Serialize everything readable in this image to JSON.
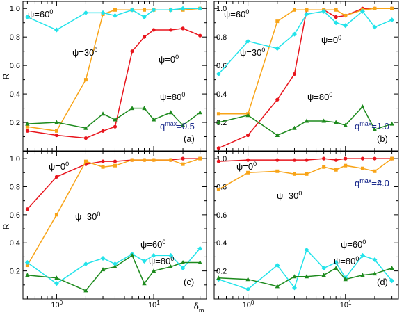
{
  "figure": {
    "xlabel": "δ",
    "xlabel_sub": "m",
    "ylabel": "R",
    "x_ticks": [
      {
        "value": 1,
        "base": "10",
        "exp": "0"
      },
      {
        "value": 10,
        "base": "10",
        "exp": "1"
      }
    ]
  },
  "chart_data": [
    {
      "type": "line",
      "panel": "(a)",
      "annotation": {
        "base": "q",
        "sup": "max",
        "rest": "=0.5"
      },
      "xscale": "log",
      "xlim": [
        0.45,
        35
      ],
      "ylim": [
        0,
        1.05
      ],
      "y_ticks": [
        "0.2",
        "0.4",
        "0.6",
        "0.8",
        "1.0"
      ],
      "series": [
        {
          "name": "ψ=0⁰",
          "color": "#e8141c",
          "marker": "circle",
          "label_text": "ψ=0",
          "label_sup": "0",
          "x": [
            0.5,
            1,
            2,
            3,
            4,
            6,
            8,
            10,
            15,
            20,
            30
          ],
          "y": [
            0.14,
            0.11,
            0.09,
            0.14,
            0.17,
            0.7,
            0.8,
            0.85,
            0.85,
            0.86,
            0.81
          ]
        },
        {
          "name": "ψ=30⁰",
          "color": "#f8a418",
          "marker": "square",
          "label_text": "ψ=30",
          "label_sup": "0",
          "x": [
            0.5,
            1,
            2,
            3,
            4,
            6,
            8,
            10,
            15,
            20,
            30
          ],
          "y": [
            0.17,
            0.14,
            0.5,
            0.96,
            0.99,
            0.99,
            0.99,
            0.99,
            0.99,
            0.99,
            1.0
          ]
        },
        {
          "name": "ψ=60⁰",
          "color": "#22e3ea",
          "marker": "diamond",
          "label_text": "ψ=60",
          "label_sup": "0",
          "x": [
            0.5,
            1,
            2,
            3,
            4,
            6,
            8,
            10,
            15,
            20,
            30
          ],
          "y": [
            0.94,
            0.85,
            0.97,
            0.97,
            0.95,
            0.99,
            0.94,
            0.99,
            0.99,
            1.0,
            1.0
          ]
        },
        {
          "name": "ψ=80⁰",
          "color": "#1d8a1d",
          "marker": "triangle",
          "label_text": "ψ=80",
          "label_sup": "0",
          "x": [
            0.5,
            1,
            2,
            3,
            4,
            6,
            8,
            10,
            15,
            20,
            30
          ],
          "y": [
            0.19,
            0.2,
            0.16,
            0.26,
            0.22,
            0.3,
            0.3,
            0.22,
            0.27,
            0.18,
            0.27
          ]
        }
      ]
    },
    {
      "type": "line",
      "panel": "(b)",
      "annotation": {
        "base": "q",
        "sup": "max",
        "rest": "=1.0"
      },
      "xscale": "log",
      "xlim": [
        0.45,
        35
      ],
      "ylim": [
        0,
        1.05
      ],
      "y_ticks": [
        "0.2",
        "0.4",
        "0.6",
        "0.8",
        "1.0"
      ],
      "series": [
        {
          "name": "ψ=0⁰",
          "color": "#e8141c",
          "marker": "circle",
          "label_text": "ψ=0",
          "label_sup": "0",
          "x": [
            0.5,
            1,
            2,
            3,
            4,
            6,
            8,
            10,
            15,
            20,
            30
          ],
          "y": [
            0.02,
            0.11,
            0.36,
            0.54,
            0.99,
            0.99,
            0.94,
            0.95,
            1.0,
            1.0,
            1.0
          ]
        },
        {
          "name": "ψ=30⁰",
          "color": "#f8a418",
          "marker": "square",
          "label_text": "ψ=30",
          "label_sup": "0",
          "x": [
            0.5,
            1,
            2,
            3,
            4,
            6,
            8,
            10,
            15,
            20,
            30
          ],
          "y": [
            0.26,
            0.26,
            0.91,
            0.99,
            0.99,
            0.99,
            0.99,
            0.95,
            0.99,
            1.0,
            1.0
          ]
        },
        {
          "name": "ψ=60⁰",
          "color": "#22e3ea",
          "marker": "diamond",
          "label_text": "ψ=60",
          "label_sup": "0",
          "x": [
            0.5,
            1,
            2,
            3,
            4,
            6,
            8,
            10,
            15,
            20,
            30
          ],
          "y": [
            0.54,
            0.77,
            0.72,
            0.82,
            0.96,
            0.98,
            0.9,
            0.88,
            0.98,
            0.87,
            0.92
          ]
        },
        {
          "name": "ψ=80⁰",
          "color": "#1d8a1d",
          "marker": "triangle",
          "label_text": "ψ=80",
          "label_sup": "0",
          "x": [
            0.5,
            1,
            2,
            3,
            4,
            6,
            8,
            10,
            15,
            20,
            30
          ],
          "y": [
            0.2,
            0.25,
            0.11,
            0.16,
            0.21,
            0.21,
            0.2,
            0.18,
            0.31,
            0.15,
            0.19
          ]
        }
      ]
    },
    {
      "type": "line",
      "panel": "(c)",
      "annotation": {
        "base": "q",
        "sup": "max",
        "rest": "=2.0"
      },
      "xscale": "log",
      "xlim": [
        0.45,
        35
      ],
      "ylim": [
        0,
        1.05
      ],
      "y_ticks": [
        "0.2",
        "0.4",
        "0.6",
        "0.8",
        "1.0"
      ],
      "series": [
        {
          "name": "ψ=0⁰",
          "color": "#e8141c",
          "marker": "circle",
          "label_text": "ψ=0",
          "label_sup": "0",
          "x": [
            0.5,
            1,
            2,
            3,
            4,
            6,
            8,
            10,
            15,
            20,
            30
          ],
          "y": [
            0.64,
            0.87,
            0.96,
            0.98,
            0.98,
            0.99,
            0.99,
            0.99,
            0.99,
            1.0,
            1.0
          ]
        },
        {
          "name": "ψ=30⁰",
          "color": "#f8a418",
          "marker": "square",
          "label_text": "ψ=30",
          "label_sup": "0",
          "x": [
            0.5,
            1,
            2,
            3,
            4,
            6,
            8,
            10,
            15,
            20,
            30
          ],
          "y": [
            0.24,
            0.6,
            0.98,
            0.94,
            0.95,
            0.99,
            0.99,
            0.99,
            0.99,
            0.96,
            1.0
          ]
        },
        {
          "name": "ψ=60⁰",
          "color": "#22e3ea",
          "marker": "diamond",
          "label_text": "ψ=60",
          "label_sup": "0",
          "x": [
            0.5,
            1,
            2,
            3,
            4,
            6,
            8,
            10,
            15,
            20,
            30
          ],
          "y": [
            0.26,
            0.11,
            0.25,
            0.29,
            0.25,
            0.32,
            0.27,
            0.31,
            0.31,
            0.22,
            0.36
          ]
        },
        {
          "name": "ψ=80⁰",
          "color": "#1d8a1d",
          "marker": "triangle",
          "label_text": "ψ=80",
          "label_sup": "0",
          "x": [
            0.5,
            1,
            2,
            3,
            4,
            6,
            8,
            10,
            15,
            20,
            30
          ],
          "y": [
            0.17,
            0.15,
            0.06,
            0.21,
            0.23,
            0.31,
            0.11,
            0.2,
            0.23,
            0.26,
            0.26
          ]
        }
      ]
    },
    {
      "type": "line",
      "panel": "(d)",
      "annotation": {
        "base": "q",
        "sup": "max",
        "rest": "=4.0"
      },
      "xscale": "log",
      "xlim": [
        0.45,
        35
      ],
      "ylim": [
        0,
        1.05
      ],
      "y_ticks": [
        "0.2",
        "0.4",
        "0.6",
        "0.8",
        "1.0"
      ],
      "series": [
        {
          "name": "ψ=0⁰",
          "color": "#e8141c",
          "marker": "circle",
          "label_text": "ψ=0",
          "label_sup": "0",
          "x": [
            0.5,
            1,
            2,
            3,
            4,
            6,
            8,
            10,
            15,
            20,
            30
          ],
          "y": [
            0.98,
            0.99,
            0.99,
            0.99,
            0.99,
            1.0,
            0.99,
            1.0,
            1.0,
            1.0,
            1.0
          ]
        },
        {
          "name": "ψ=30⁰",
          "color": "#f8a418",
          "marker": "square",
          "label_text": "ψ=30",
          "label_sup": "0",
          "x": [
            0.5,
            1,
            2,
            3,
            4,
            6,
            8,
            10,
            15,
            20,
            30
          ],
          "y": [
            0.78,
            0.9,
            0.91,
            0.89,
            0.89,
            0.94,
            0.92,
            0.95,
            0.93,
            0.91,
            1.0
          ]
        },
        {
          "name": "ψ=60⁰",
          "color": "#22e3ea",
          "marker": "diamond",
          "label_text": "ψ=60",
          "label_sup": "0",
          "x": [
            0.5,
            1,
            2,
            3,
            4,
            6,
            8,
            10,
            15,
            20,
            30
          ],
          "y": [
            0.14,
            0.07,
            0.24,
            0.08,
            0.35,
            0.22,
            0.26,
            0.15,
            0.31,
            0.28,
            0.13
          ]
        },
        {
          "name": "ψ=80⁰",
          "color": "#1d8a1d",
          "marker": "triangle",
          "label_text": "ψ=80",
          "label_sup": "0",
          "x": [
            0.5,
            1,
            2,
            3,
            4,
            6,
            8,
            10,
            15,
            20,
            30
          ],
          "y": [
            0.15,
            0.14,
            0.09,
            0.16,
            0.16,
            0.17,
            0.22,
            0.14,
            0.17,
            0.18,
            0.22
          ]
        }
      ]
    }
  ]
}
